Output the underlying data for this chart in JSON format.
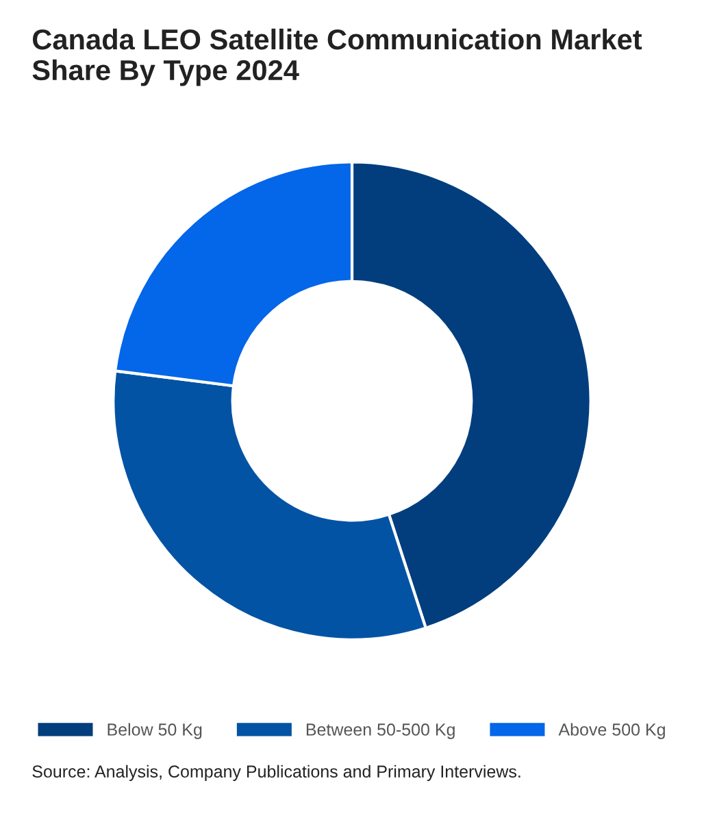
{
  "chart_data": {
    "type": "donut",
    "title": "Canada LEO Satellite Communication Market Share By Type 2024",
    "categories": [
      "Below 50 Kg",
      "Between 50-500 Kg",
      "Above 500 Kg"
    ],
    "values": [
      45,
      32,
      23
    ],
    "colors": [
      "#023e7d",
      "#0353a4",
      "#0466e8"
    ],
    "legend": "bottom",
    "annotations": [
      "Source: Analysis, Company Publications and Primary Interviews."
    ]
  }
}
